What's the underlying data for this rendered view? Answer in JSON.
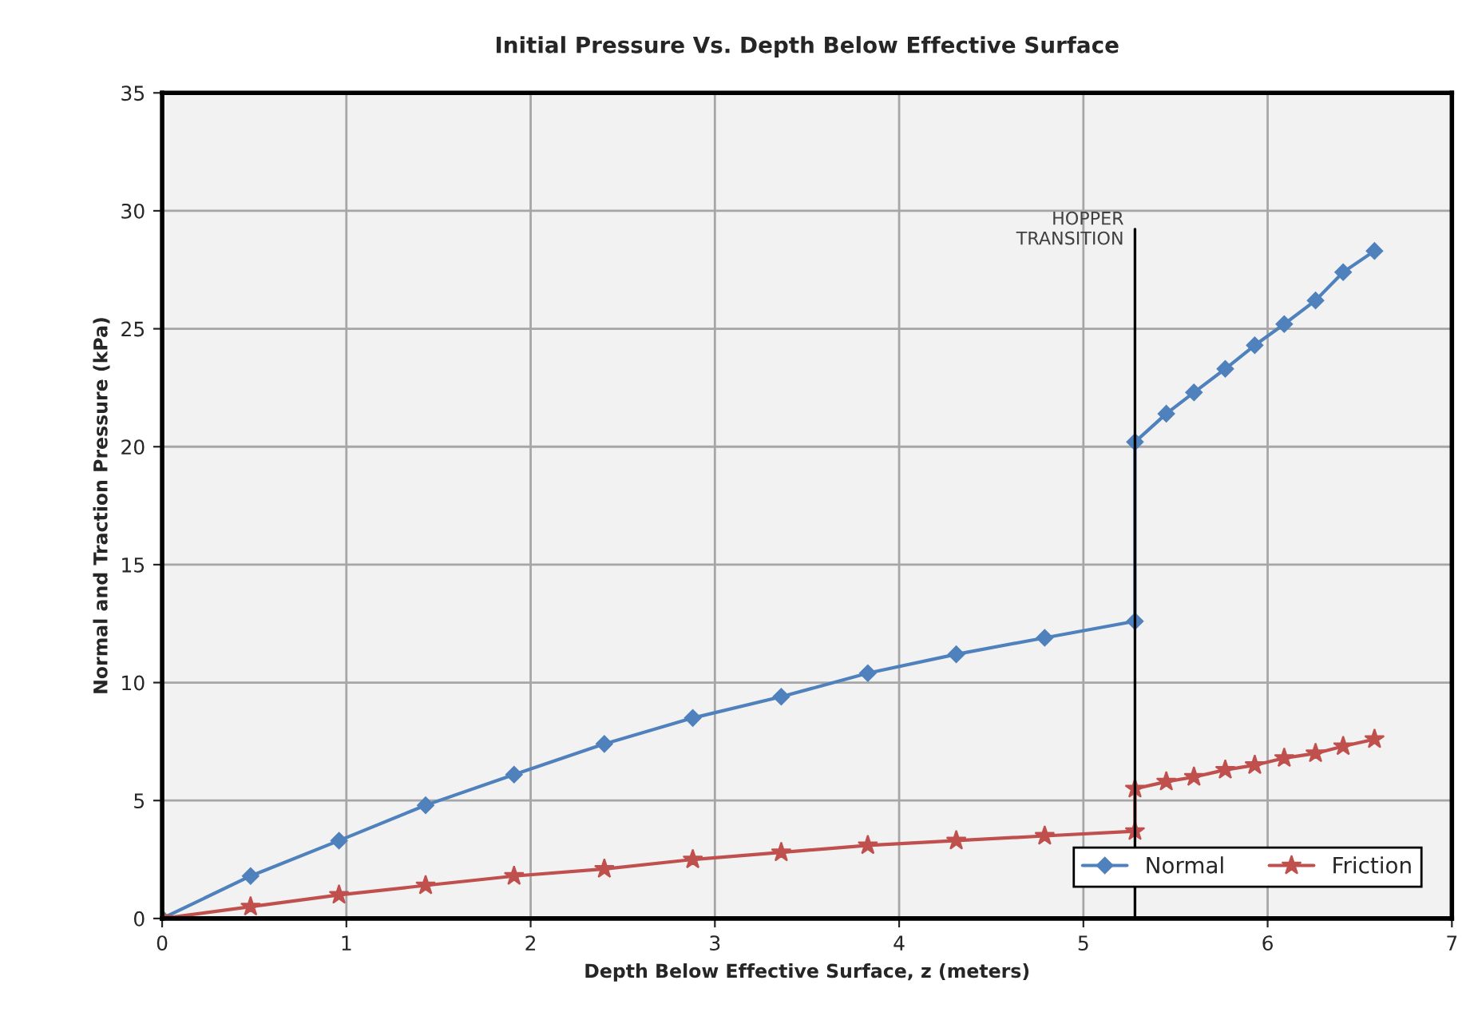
{
  "chart_data": {
    "type": "line",
    "title": "Initial Pressure Vs. Depth Below Effective Surface",
    "xlabel": "Depth Below Effective Surface, z (meters)",
    "ylabel": "Normal and Traction Pressure (kPa)",
    "series": [
      {
        "name": "Normal",
        "color": "#4f81bd",
        "marker": "diamond",
        "x": [
          0,
          0.48,
          0.96,
          1.43,
          1.91,
          2.4,
          2.88,
          3.36,
          3.83,
          4.31,
          4.79,
          5.28,
          5.28,
          5.45,
          5.6,
          5.77,
          5.93,
          6.09,
          6.26,
          6.41,
          6.58
        ],
        "values": [
          0,
          1.8,
          3.3,
          4.8,
          6.1,
          7.4,
          8.5,
          9.4,
          10.4,
          11.2,
          11.9,
          12.6,
          20.2,
          21.4,
          22.3,
          23.3,
          24.3,
          25.2,
          26.2,
          27.4,
          28.3
        ]
      },
      {
        "name": "Friction",
        "color": "#c0504d",
        "marker": "star",
        "x": [
          0,
          0.48,
          0.96,
          1.43,
          1.91,
          2.4,
          2.88,
          3.36,
          3.83,
          4.31,
          4.79,
          5.28,
          5.28,
          5.45,
          5.6,
          5.77,
          5.93,
          6.09,
          6.26,
          6.41,
          6.58
        ],
        "values": [
          0,
          0.5,
          1.0,
          1.4,
          1.8,
          2.1,
          2.5,
          2.8,
          3.1,
          3.3,
          3.5,
          3.7,
          5.5,
          5.8,
          6.0,
          6.3,
          6.5,
          6.8,
          7.0,
          7.3,
          7.6
        ]
      }
    ],
    "xlim": [
      0,
      7
    ],
    "xticks": [
      0,
      1,
      2,
      3,
      4,
      5,
      6,
      7
    ],
    "ylim": [
      0,
      35
    ],
    "yticks": [
      0,
      5,
      10,
      15,
      20,
      25,
      30,
      35
    ],
    "ref_lines": [
      {
        "axis": "x",
        "value": 5.28,
        "label": "HOPPER\nTRANSITION",
        "color": "#000000"
      }
    ],
    "grid": true,
    "legend": "bottom right"
  }
}
